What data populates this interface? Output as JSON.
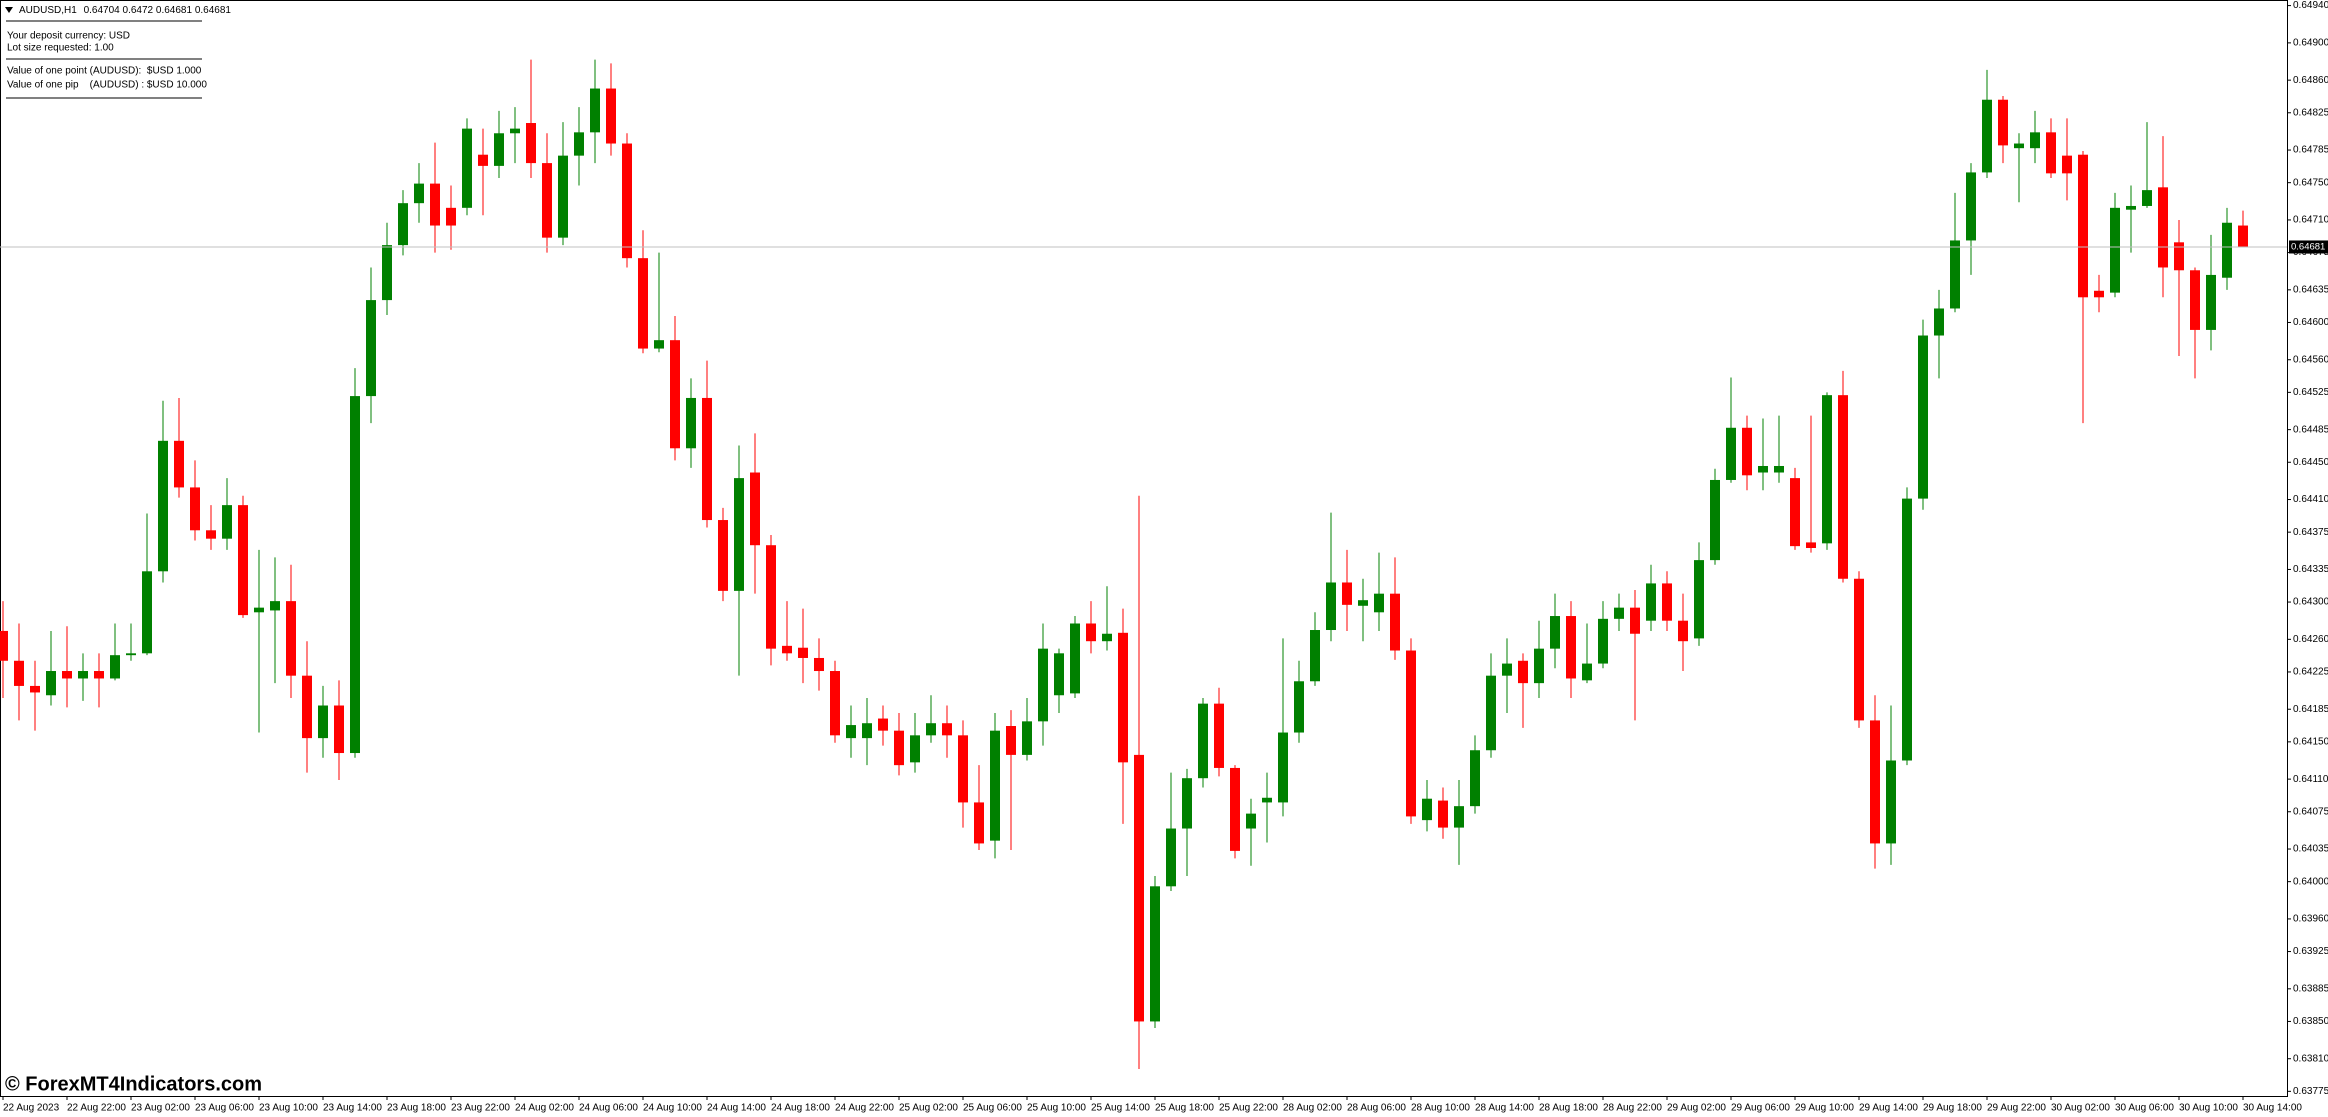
{
  "chart_data": {
    "type": "candlestick",
    "symbol": "AUDUSD,H1",
    "info": [
      "Your deposit currency: USD",
      "Lot size requested: 1.00",
      "Value of one point (AUDUSD):  $USD 1.000",
      "Value of one pip    (AUDUSD) : $USD 10.000"
    ],
    "watermark": "© ForexMT4Indicators.com",
    "up_color": "#008000",
    "down_color": "#ff0000",
    "grid": false,
    "bid": 0.64681,
    "ylim": [
      0.6377,
      0.64946
    ],
    "yticks": [
      {
        "value": 0.6494,
        "label": "0.64940"
      },
      {
        "value": 0.649,
        "label": "0.64900"
      },
      {
        "value": 0.6486,
        "label": "0.64860"
      },
      {
        "value": 0.64825,
        "label": "0.64825"
      },
      {
        "value": 0.64785,
        "label": "0.64785"
      },
      {
        "value": 0.6475,
        "label": "0.64750"
      },
      {
        "value": 0.6471,
        "label": "0.64710"
      },
      {
        "value": 0.64675,
        "label": "0.64675"
      },
      {
        "value": 0.64635,
        "label": "0.64635"
      },
      {
        "value": 0.646,
        "label": "0.64600"
      },
      {
        "value": 0.6456,
        "label": "0.64560"
      },
      {
        "value": 0.64525,
        "label": "0.64525"
      },
      {
        "value": 0.64485,
        "label": "0.64485"
      },
      {
        "value": 0.6445,
        "label": "0.64450"
      },
      {
        "value": 0.6441,
        "label": "0.64410"
      },
      {
        "value": 0.64375,
        "label": "0.64375"
      },
      {
        "value": 0.64335,
        "label": "0.64335"
      },
      {
        "value": 0.643,
        "label": "0.64300"
      },
      {
        "value": 0.6426,
        "label": "0.64260"
      },
      {
        "value": 0.64225,
        "label": "0.64225"
      },
      {
        "value": 0.64185,
        "label": "0.64185"
      },
      {
        "value": 0.6415,
        "label": "0.64150"
      },
      {
        "value": 0.6411,
        "label": "0.64110"
      },
      {
        "value": 0.64075,
        "label": "0.64075"
      },
      {
        "value": 0.64035,
        "label": "0.64035"
      },
      {
        "value": 0.64,
        "label": "0.64000"
      },
      {
        "value": 0.6396,
        "label": "0.63960"
      },
      {
        "value": 0.63925,
        "label": "0.63925"
      },
      {
        "value": 0.63885,
        "label": "0.63885"
      },
      {
        "value": 0.6385,
        "label": "0.63850"
      },
      {
        "value": 0.6381,
        "label": "0.63810"
      },
      {
        "value": 0.63775,
        "label": "0.63775"
      }
    ],
    "categories": [
      "22 Aug 2023",
      null,
      null,
      null,
      "22 Aug 22:00",
      null,
      null,
      null,
      "23 Aug 02:00",
      null,
      null,
      null,
      "23 Aug 06:00",
      null,
      null,
      null,
      "23 Aug 10:00",
      null,
      null,
      null,
      "23 Aug 14:00",
      null,
      null,
      null,
      "23 Aug 18:00",
      null,
      null,
      null,
      "23 Aug 22:00",
      null,
      null,
      null,
      "24 Aug 02:00",
      null,
      null,
      null,
      "24 Aug 06:00",
      null,
      null,
      null,
      "24 Aug 10:00",
      null,
      null,
      null,
      "24 Aug 14:00",
      null,
      null,
      null,
      "24 Aug 18:00",
      null,
      null,
      null,
      "24 Aug 22:00",
      null,
      null,
      null,
      "25 Aug 02:00",
      null,
      null,
      null,
      "25 Aug 06:00",
      null,
      null,
      null,
      "25 Aug 10:00",
      null,
      null,
      null,
      "25 Aug 14:00",
      null,
      null,
      null,
      "25 Aug 18:00",
      null,
      null,
      null,
      "25 Aug 22:00",
      null,
      null,
      null,
      "28 Aug 02:00",
      null,
      null,
      null,
      "28 Aug 06:00",
      null,
      null,
      null,
      "28 Aug 10:00",
      null,
      null,
      null,
      "28 Aug 14:00",
      null,
      null,
      null,
      "28 Aug 18:00",
      null,
      null,
      null,
      "28 Aug 22:00",
      null,
      null,
      null,
      "29 Aug 02:00",
      null,
      null,
      null,
      "29 Aug 06:00",
      null,
      null,
      null,
      "29 Aug 10:00",
      null,
      null,
      null,
      "29 Aug 14:00",
      null,
      null,
      null,
      "29 Aug 18:00",
      null,
      null,
      null,
      "29 Aug 22:00",
      null,
      null,
      null,
      "30 Aug 02:00",
      null,
      null,
      null,
      "30 Aug 06:00",
      null,
      null,
      null,
      "30 Aug 10:00",
      null,
      null,
      null,
      "30 Aug 14:00"
    ],
    "open": [
      0.64269,
      0.64237,
      0.6421,
      0.642,
      0.64226,
      0.64218,
      0.64226,
      0.64218,
      0.64243,
      0.64245,
      0.64333,
      0.64473,
      0.64423,
      0.64377,
      0.64368,
      0.64404,
      0.64289,
      0.64291,
      0.64301,
      0.64221,
      0.64154,
      0.64189,
      0.64138,
      0.64521,
      0.64624,
      0.64683,
      0.64728,
      0.64749,
      0.64723,
      0.64723,
      0.6478,
      0.64768,
      0.64803,
      0.64814,
      0.64771,
      0.64691,
      0.64779,
      0.64804,
      0.64851,
      0.64792,
      0.64669,
      0.64572,
      0.64581,
      0.64465,
      0.64519,
      0.64388,
      0.64312,
      0.64439,
      0.64361,
      0.64253,
      0.64251,
      0.6424,
      0.64226,
      0.64154,
      0.64154,
      0.64175,
      0.64162,
      0.64128,
      0.64157,
      0.6417,
      0.64157,
      0.64085,
      0.64044,
      0.64167,
      0.64136,
      0.64172,
      0.642,
      0.64202,
      0.64277,
      0.64258,
      0.64267,
      0.64136,
      0.6385,
      0.63995,
      0.64057,
      0.64111,
      0.64191,
      0.64122,
      0.64057,
      0.64085,
      0.64085,
      0.6416,
      0.64215,
      0.6427,
      0.64321,
      0.64296,
      0.64289,
      0.64309,
      0.64248,
      0.64066,
      0.64087,
      0.64058,
      0.64081,
      0.64141,
      0.64221,
      0.64237,
      0.64213,
      0.6425,
      0.64285,
      0.64216,
      0.64234,
      0.64282,
      0.64294,
      0.6428,
      0.6432,
      0.6428,
      0.64261,
      0.64345,
      0.64431,
      0.64487,
      0.64439,
      0.64439,
      0.64433,
      0.64364,
      0.64363,
      0.64522,
      0.64325,
      0.64173,
      0.64041,
      0.6413,
      0.64411,
      0.64586,
      0.64615,
      0.64688,
      0.64761,
      0.64839,
      0.64787,
      0.64787,
      0.64804,
      0.64779,
      0.6478,
      0.64634,
      0.64632,
      0.64721,
      0.64725,
      0.64745,
      0.64686,
      0.64656,
      0.64592,
      0.64648,
      0.64704
    ],
    "high": [
      0.64301,
      0.64277,
      0.64237,
      0.64269,
      0.64274,
      0.64245,
      0.64245,
      0.64277,
      0.64277,
      0.64395,
      0.64516,
      0.64519,
      0.64452,
      0.64404,
      0.64433,
      0.64414,
      0.64356,
      0.64348,
      0.6434,
      0.64258,
      0.6421,
      0.64216,
      0.64551,
      0.64659,
      0.64707,
      0.64742,
      0.64771,
      0.64793,
      0.64747,
      0.64819,
      0.64808,
      0.64827,
      0.64831,
      0.64882,
      0.64803,
      0.64815,
      0.64831,
      0.64882,
      0.64878,
      0.64803,
      0.64699,
      0.64675,
      0.64607,
      0.6454,
      0.64559,
      0.64401,
      0.64468,
      0.64481,
      0.64372,
      0.64301,
      0.64293,
      0.64261,
      0.64237,
      0.64189,
      0.64197,
      0.64189,
      0.64181,
      0.64181,
      0.642,
      0.64189,
      0.64173,
      0.64125,
      0.64181,
      0.64184,
      0.64197,
      0.64277,
      0.6425,
      0.64285,
      0.64301,
      0.64317,
      0.64293,
      0.64414,
      0.64006,
      0.64117,
      0.64121,
      0.64197,
      0.64208,
      0.64125,
      0.64089,
      0.64117,
      0.64261,
      0.64237,
      0.64289,
      0.64396,
      0.64356,
      0.64325,
      0.64353,
      0.64348,
      0.64261,
      0.64109,
      0.64101,
      0.64109,
      0.64157,
      0.64245,
      0.64261,
      0.64245,
      0.6428,
      0.64309,
      0.64301,
      0.64277,
      0.64301,
      0.64309,
      0.64313,
      0.6434,
      0.64333,
      0.64309,
      0.64364,
      0.64443,
      0.64541,
      0.645,
      0.64497,
      0.645,
      0.64444,
      0.645,
      0.64525,
      0.64548,
      0.64333,
      0.642,
      0.64189,
      0.64423,
      0.64603,
      0.64635,
      0.64739,
      0.64771,
      0.64871,
      0.64843,
      0.64803,
      0.64827,
      0.64819,
      0.64819,
      0.64784,
      0.64651,
      0.64739,
      0.64747,
      0.64815,
      0.648,
      0.6471,
      0.64659,
      0.64694,
      0.64723,
      0.6472
    ],
    "low": [
      0.64197,
      0.64173,
      0.64162,
      0.64189,
      0.64187,
      0.64194,
      0.64187,
      0.64216,
      0.64237,
      0.64243,
      0.64321,
      0.64412,
      0.64366,
      0.64356,
      0.64356,
      0.64283,
      0.6416,
      0.64213,
      0.64197,
      0.64117,
      0.64133,
      0.64109,
      0.64133,
      0.64492,
      0.64608,
      0.64672,
      0.64707,
      0.64675,
      0.64678,
      0.64715,
      0.64715,
      0.64755,
      0.64771,
      0.64755,
      0.64675,
      0.64683,
      0.64747,
      0.64771,
      0.64779,
      0.64659,
      0.64567,
      0.64568,
      0.64452,
      0.64444,
      0.6438,
      0.64301,
      0.64221,
      0.64309,
      0.64232,
      0.64237,
      0.64213,
      0.64205,
      0.64149,
      0.64133,
      0.64125,
      0.64146,
      0.64114,
      0.64117,
      0.64149,
      0.64133,
      0.64058,
      0.64034,
      0.64025,
      0.64034,
      0.6413,
      0.64146,
      0.64181,
      0.64197,
      0.64245,
      0.64248,
      0.64062,
      0.63799,
      0.63843,
      0.6399,
      0.64006,
      0.64101,
      0.64113,
      0.64025,
      0.64017,
      0.64042,
      0.6407,
      0.64149,
      0.6421,
      0.64258,
      0.64269,
      0.64258,
      0.64269,
      0.64238,
      0.64062,
      0.64054,
      0.64046,
      0.64018,
      0.64073,
      0.64133,
      0.64181,
      0.64165,
      0.64197,
      0.64229,
      0.64197,
      0.64213,
      0.64229,
      0.64269,
      0.64173,
      0.64269,
      0.64269,
      0.64226,
      0.64253,
      0.6434,
      0.64428,
      0.6442,
      0.6442,
      0.64428,
      0.64356,
      0.64353,
      0.64356,
      0.64321,
      0.64165,
      0.64014,
      0.64018,
      0.64125,
      0.64399,
      0.6454,
      0.64611,
      0.64651,
      0.64755,
      0.64771,
      0.64729,
      0.64771,
      0.64755,
      0.64731,
      0.64492,
      0.64611,
      0.64627,
      0.64675,
      0.64723,
      0.64627,
      0.64564,
      0.6454,
      0.6457,
      0.64635,
      0.64681
    ],
    "close": [
      0.64237,
      0.6421,
      0.64203,
      0.64226,
      0.64218,
      0.64226,
      0.64218,
      0.64243,
      0.64245,
      0.64333,
      0.64473,
      0.64423,
      0.64377,
      0.64368,
      0.64404,
      0.64286,
      0.64294,
      0.64301,
      0.64221,
      0.64154,
      0.64189,
      0.64138,
      0.64521,
      0.64624,
      0.64683,
      0.64728,
      0.64749,
      0.64704,
      0.64704,
      0.64808,
      0.64768,
      0.64803,
      0.64808,
      0.64771,
      0.64691,
      0.64779,
      0.64804,
      0.64851,
      0.64792,
      0.64669,
      0.64572,
      0.64581,
      0.64465,
      0.64519,
      0.64388,
      0.64312,
      0.64433,
      0.64361,
      0.6425,
      0.64245,
      0.6424,
      0.64226,
      0.64157,
      0.64168,
      0.6417,
      0.64162,
      0.64125,
      0.64157,
      0.6417,
      0.64157,
      0.64085,
      0.64041,
      0.64162,
      0.64136,
      0.64172,
      0.6425,
      0.64245,
      0.64277,
      0.64258,
      0.64266,
      0.64128,
      0.6385,
      0.63995,
      0.64057,
      0.64111,
      0.64191,
      0.64122,
      0.64033,
      0.64073,
      0.6409,
      0.6416,
      0.64215,
      0.6427,
      0.64321,
      0.64297,
      0.64302,
      0.64309,
      0.64248,
      0.6407,
      0.64089,
      0.64058,
      0.64081,
      0.64141,
      0.64221,
      0.64234,
      0.64213,
      0.6425,
      0.64285,
      0.64218,
      0.64234,
      0.64282,
      0.64294,
      0.64266,
      0.6432,
      0.6428,
      0.64258,
      0.64345,
      0.64431,
      0.64487,
      0.64436,
      0.64446,
      0.64446,
      0.6436,
      0.64358,
      0.64522,
      0.64325,
      0.64173,
      0.64041,
      0.6413,
      0.64411,
      0.64586,
      0.64615,
      0.64688,
      0.64761,
      0.64839,
      0.6479,
      0.64792,
      0.64804,
      0.6476,
      0.6476,
      0.64627,
      0.64627,
      0.64723,
      0.64725,
      0.64742,
      0.64659,
      0.64656,
      0.64592,
      0.64651,
      0.64707,
      0.64681
    ]
  }
}
